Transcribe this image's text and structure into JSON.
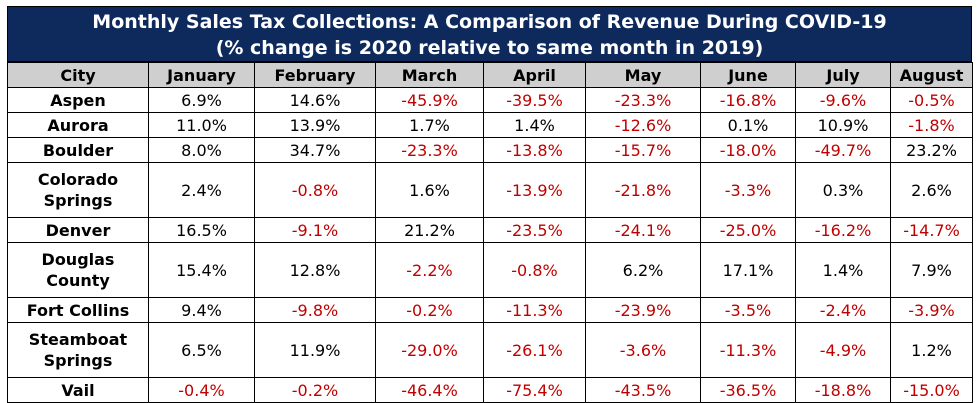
{
  "chart_data": {
    "type": "table",
    "title": "Monthly Sales Tax Collections: A Comparison of Revenue During COVID-19",
    "subtitle": "(% change is 2020 relative to same month in 2019)",
    "columns": [
      "City",
      "January",
      "February",
      "March",
      "April",
      "May",
      "June",
      "July",
      "August"
    ],
    "rows": [
      {
        "city": [
          "Aspen"
        ],
        "values": [
          "6.9%",
          "14.6%",
          "-45.9%",
          "-39.5%",
          "-23.3%",
          "-16.8%",
          "-9.6%",
          "-0.5%"
        ]
      },
      {
        "city": [
          "Aurora"
        ],
        "values": [
          "11.0%",
          "13.9%",
          "1.7%",
          "1.4%",
          "-12.6%",
          "0.1%",
          "10.9%",
          "-1.8%"
        ]
      },
      {
        "city": [
          "Boulder"
        ],
        "values": [
          "8.0%",
          "34.7%",
          "-23.3%",
          "-13.8%",
          "-15.7%",
          "-18.0%",
          "-49.7%",
          "23.2%"
        ]
      },
      {
        "city": [
          "Colorado",
          "Springs"
        ],
        "values": [
          "2.4%",
          "-0.8%",
          "1.6%",
          "-13.9%",
          "-21.8%",
          "-3.3%",
          "0.3%",
          "2.6%"
        ]
      },
      {
        "city": [
          "Denver"
        ],
        "values": [
          "16.5%",
          "-9.1%",
          "21.2%",
          "-23.5%",
          "-24.1%",
          "-25.0%",
          "-16.2%",
          "-14.7%"
        ]
      },
      {
        "city": [
          "Douglas",
          "County"
        ],
        "values": [
          "15.4%",
          "12.8%",
          "-2.2%",
          "-0.8%",
          "6.2%",
          "17.1%",
          "1.4%",
          "7.9%"
        ]
      },
      {
        "city": [
          "Fort Collins"
        ],
        "values": [
          "9.4%",
          "-9.8%",
          "-0.2%",
          "-11.3%",
          "-23.9%",
          "-3.5%",
          "-2.4%",
          "-3.9%"
        ]
      },
      {
        "city": [
          "Steamboat",
          "Springs"
        ],
        "values": [
          "6.5%",
          "11.9%",
          "-29.0%",
          "-26.1%",
          "-3.6%",
          "-11.3%",
          "-4.9%",
          "1.2%"
        ]
      },
      {
        "city": [
          "Vail"
        ],
        "values": [
          "-0.4%",
          "-0.2%",
          "-46.4%",
          "-75.4%",
          "-43.5%",
          "-36.5%",
          "-18.8%",
          "-15.0%"
        ]
      }
    ],
    "colors": {
      "title_bg": "#0e2a5c",
      "header_bg": "#cfcfcf",
      "negative": "#c00000",
      "positive": "#000000"
    }
  }
}
